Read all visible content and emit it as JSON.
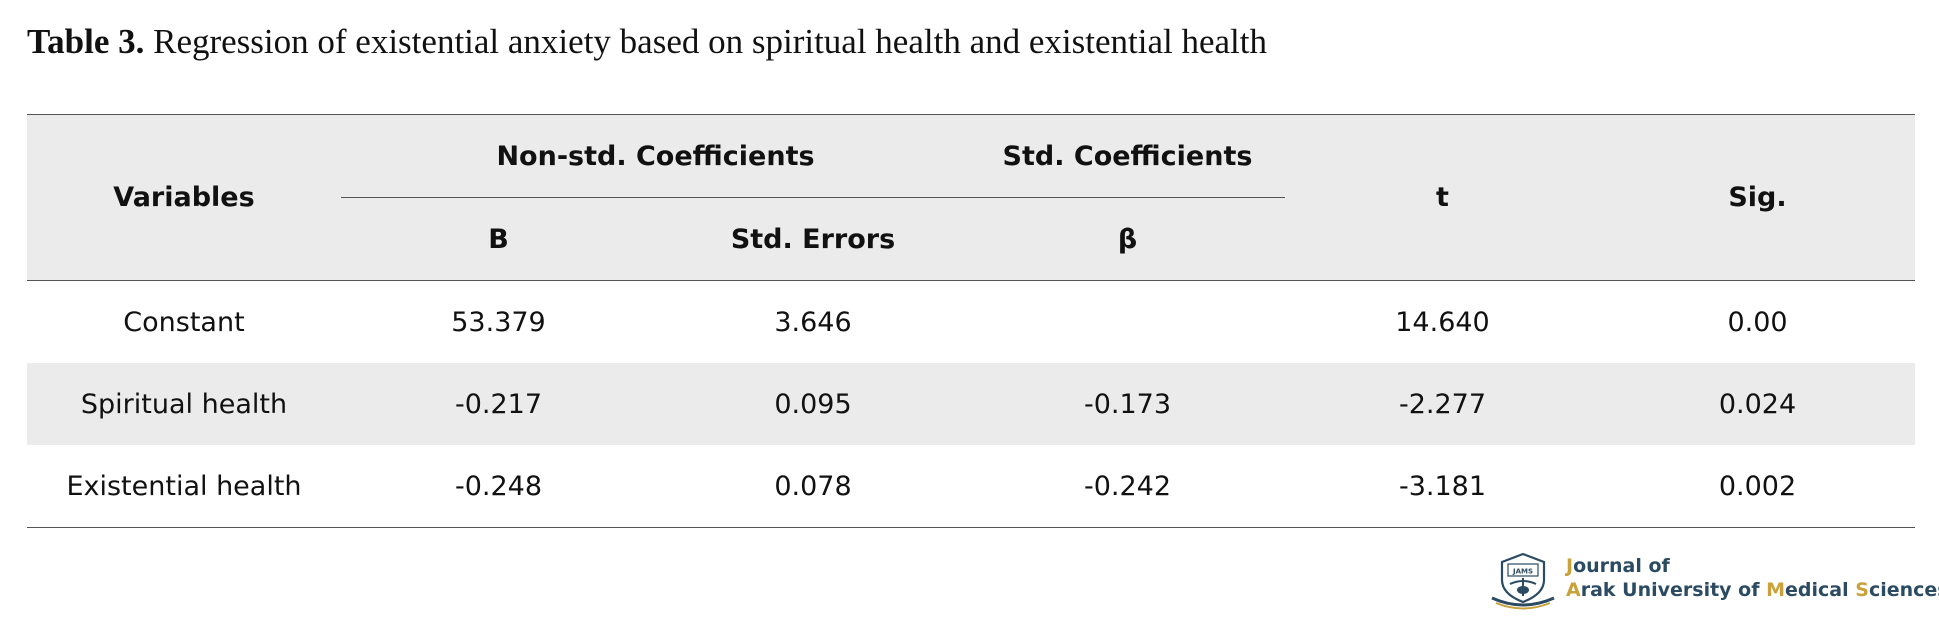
{
  "caption": {
    "label": "Table 3.",
    "text": " Regression of existential anxiety based on spiritual health and existential health"
  },
  "table": {
    "headers": {
      "variables": "Variables",
      "non_std_group": "Non-std. Coefficients",
      "std_group": "Std. Coefficients",
      "t": "t",
      "sig": "Sig.",
      "b": "B",
      "std_errors": "Std. Errors",
      "beta": "β"
    },
    "rows": [
      {
        "variable": "Constant",
        "b": "53.379",
        "std_error": "3.646",
        "beta": "",
        "t": "14.640",
        "sig": "0.00"
      },
      {
        "variable": "Spiritual health",
        "b": "-0.217",
        "std_error": "0.095",
        "beta": "-0.173",
        "t": "-2.277",
        "sig": "0.024"
      },
      {
        "variable": "Existential health",
        "b": "-0.248",
        "std_error": "0.078",
        "beta": "-0.242",
        "t": "-3.181",
        "sig": "0.002"
      }
    ]
  },
  "logo": {
    "line1_initial": "J",
    "line1_rest": "ournal of",
    "line2_a": "A",
    "line2_a_rest": "rak University of ",
    "line2_m": "M",
    "line2_m_rest": "edical ",
    "line2_s": "S",
    "line2_s_rest": "ciences",
    "mark_text": "JAMS",
    "colors": {
      "primary": "#2b4b63",
      "accent": "#c9a23a"
    }
  }
}
